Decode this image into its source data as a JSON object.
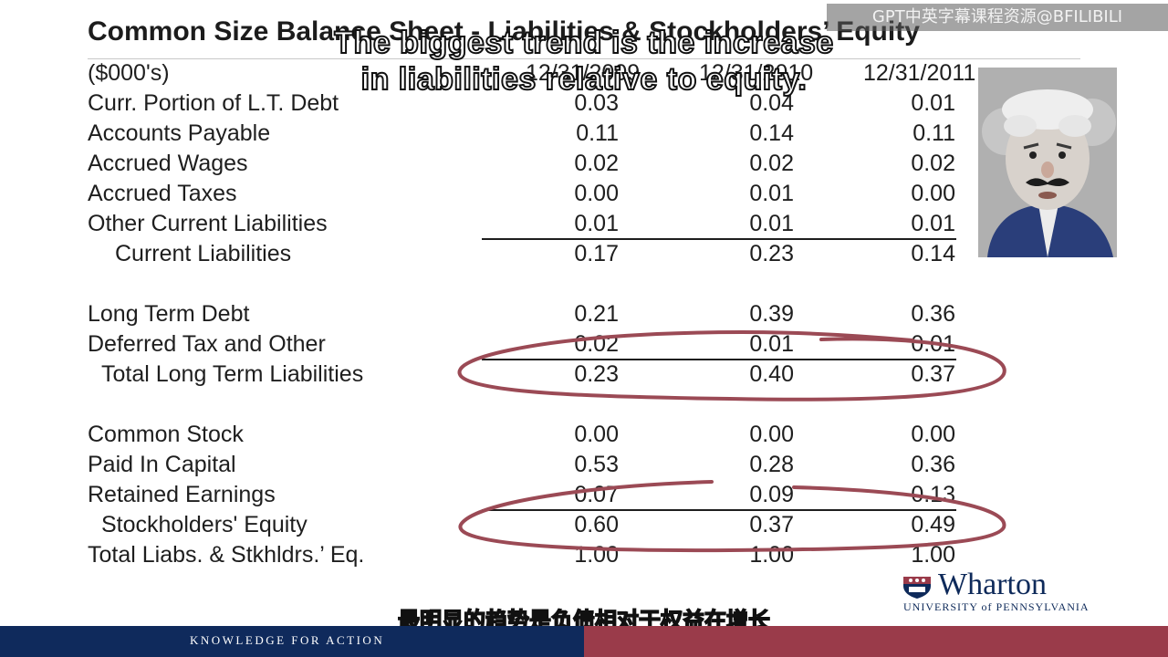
{
  "slide": {
    "title": "Common Size Balance Sheet - Liabilities & Stockholders’ Equity",
    "units": "($000's)",
    "column_headers": [
      "12/31/2009",
      "12/31/2010",
      "12/31/2011"
    ]
  },
  "rows": [
    {
      "label": "Curr. Portion of   L.T. Debt",
      "values": [
        "0.03",
        "0.04",
        "0.01"
      ]
    },
    {
      "label": "Accounts Payable",
      "values": [
        "0.11",
        "0.14",
        "0.11"
      ]
    },
    {
      "label": "Accrued Wages",
      "values": [
        "0.02",
        "0.02",
        "0.02"
      ]
    },
    {
      "label": "Accrued Taxes",
      "values": [
        "0.00",
        "0.01",
        "0.00"
      ]
    },
    {
      "label": "Other Current Liabilities",
      "values": [
        "0.01",
        "0.01",
        "0.01"
      ]
    },
    {
      "label": "Current Liabilities",
      "values": [
        "0.17",
        "0.23",
        "0.14"
      ]
    },
    {
      "label": "Long Term Debt",
      "values": [
        "0.21",
        "0.39",
        "0.36"
      ]
    },
    {
      "label": "Deferred Tax and Other",
      "values": [
        "0.02",
        "0.01",
        "0.01"
      ]
    },
    {
      "label": "Total Long Term Liabilities",
      "values": [
        "0.23",
        "0.40",
        "0.37"
      ]
    },
    {
      "label": "Common Stock",
      "values": [
        "0.00",
        "0.00",
        "0.00"
      ]
    },
    {
      "label": "Paid In Capital",
      "values": [
        "0.53",
        "0.28",
        "0.36"
      ]
    },
    {
      "label": "Retained Earnings",
      "values": [
        "0.07",
        "0.09",
        "0.13"
      ]
    },
    {
      "label": "Stockholders' Equity",
      "values": [
        "0.60",
        "0.37",
        "0.49"
      ]
    },
    {
      "label": "Total Liabs. & Stkhldrs.’ Eq.",
      "values": [
        "1.00",
        "1.00",
        "1.00"
      ]
    }
  ],
  "overlay_caption": {
    "line1": "The biggest trend is the increase",
    "line2": "in liabilities relative to equity."
  },
  "watermark": "GPT中英字幕课程资源@BFILIBILI",
  "subtitle_cn": "最明显的趋势是负债相对于权益在增长",
  "logo": {
    "name": "Wharton",
    "subtitle": "UNIVERSITY of PENNSYLVANIA"
  },
  "footer": {
    "tagline": "KNOWLEDGE FOR ACTION"
  },
  "colors": {
    "highlight_ellipse": "#9b4a55",
    "footer_navy": "#0f2a5c",
    "footer_maroon": "#9a3b4a",
    "logo_navy": "#0e2a5a"
  },
  "icons": [
    "cartoon-presenter-avatar",
    "penn-shield-icon"
  ]
}
